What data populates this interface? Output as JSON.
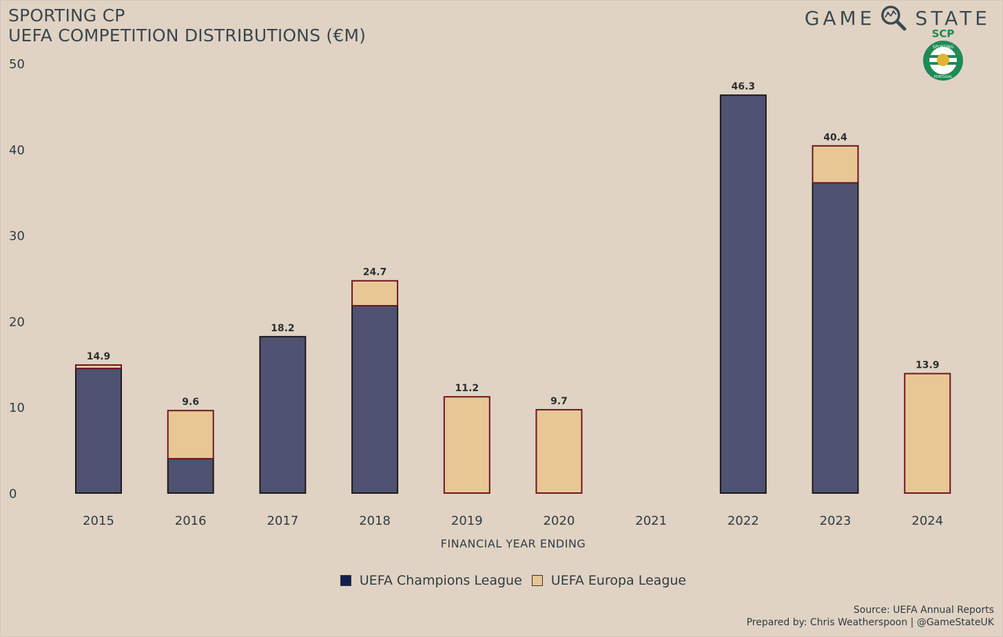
{
  "title": {
    "line1": "SPORTING CP",
    "line2": "UEFA COMPETITION DISTRIBUTIONS (€M)"
  },
  "brand": {
    "word_left": "GAME",
    "word_right": "STATE",
    "icon": "magnifier-icon"
  },
  "crest": {
    "text_top": "SCP",
    "text_ring": "SPORTING",
    "text_bottom": "PORTUGAL",
    "color": "#1e8a55"
  },
  "legend": {
    "items": [
      {
        "label": "UEFA Champions League",
        "color": "#122050"
      },
      {
        "label": "UEFA Europa League",
        "color": "#e8c794"
      }
    ]
  },
  "source": {
    "line1": "Source: UEFA Annual Reports",
    "line2": "Prepared by: Chris Weatherspoon | @GameStateUK"
  },
  "colors": {
    "background": "#e0d3c3",
    "champions_fill": "#4f5270",
    "europa_fill": "#e8c794",
    "europa_border": "#6b1620",
    "champions_border": "#1a1a1a"
  },
  "chart_data": {
    "type": "bar",
    "stacked": true,
    "xlabel": "FINANCIAL YEAR ENDING",
    "ylabel": "",
    "ylim": [
      0,
      50
    ],
    "yticks": [
      0,
      10,
      20,
      30,
      40,
      50
    ],
    "grid": false,
    "legend_position": "bottom",
    "categories": [
      "2015",
      "2016",
      "2017",
      "2018",
      "2019",
      "2020",
      "2021",
      "2022",
      "2023",
      "2024"
    ],
    "series": [
      {
        "name": "UEFA Champions League",
        "values": [
          14.5,
          4.0,
          18.2,
          21.8,
          0,
          0,
          0,
          46.3,
          36.1,
          0
        ]
      },
      {
        "name": "UEFA Europa League",
        "values": [
          0.4,
          5.6,
          0,
          2.9,
          11.2,
          9.7,
          0,
          0,
          4.3,
          13.9
        ]
      }
    ],
    "totals": [
      "14.9",
      "9.6",
      "18.2",
      "24.7",
      "11.2",
      "9.7",
      "",
      "46.3",
      "40.4",
      "13.9"
    ]
  }
}
